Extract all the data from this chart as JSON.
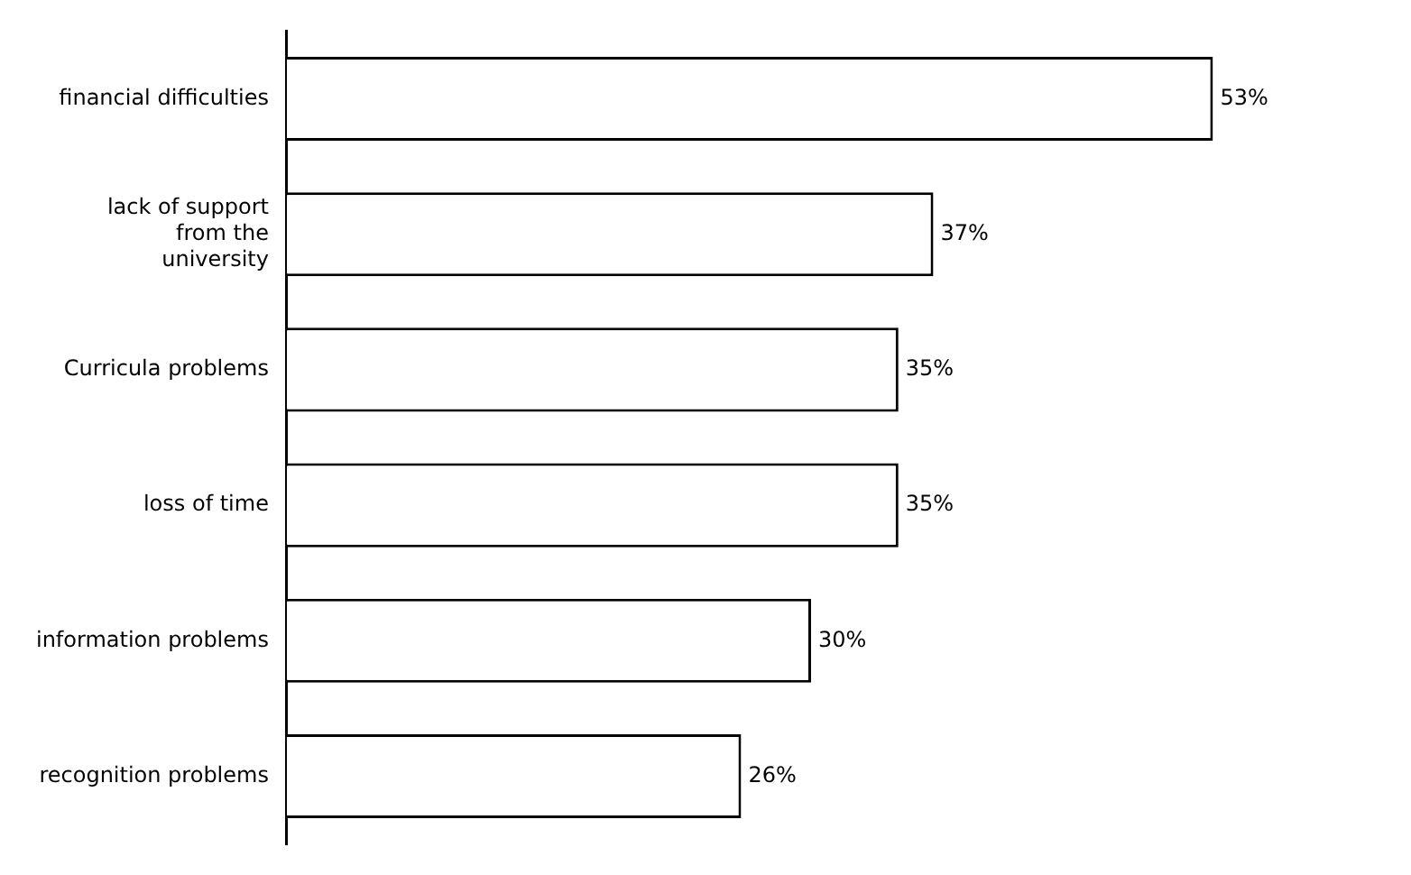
{
  "chart_data": {
    "type": "bar",
    "orientation": "horizontal",
    "categories": [
      "financial difficulties",
      "lack of support from the university",
      "Curricula problems",
      "loss of time",
      "information problems",
      "recognition problems"
    ],
    "values": [
      53,
      37,
      35,
      35,
      30,
      26
    ],
    "value_labels": [
      "53%",
      "37%",
      "35%",
      "35%",
      "30%",
      "26%"
    ],
    "color": "#ffffff",
    "grid": false,
    "legend": false
  }
}
